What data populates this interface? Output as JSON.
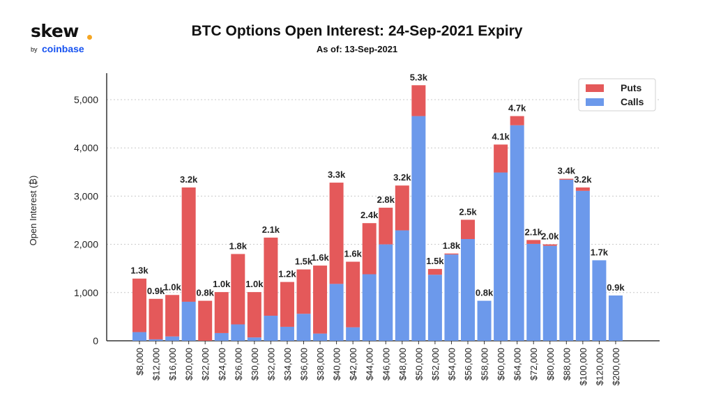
{
  "logo": {
    "word": "skew",
    "by": "by",
    "brand": "coinbase",
    "accent_color": "#f5a623",
    "brand_color": "#1652f0"
  },
  "chart_data": {
    "type": "bar",
    "stacked": true,
    "title": "BTC Options Open Interest: 24-Sep-2021 Expiry",
    "subtitle": "As of: 13-Sep-2021",
    "ylabel": "Open Interest (₿)",
    "ylim": [
      0,
      5550
    ],
    "yticks": [
      0,
      1000,
      2000,
      3000,
      4000,
      5000
    ],
    "ytick_labels": [
      "0",
      "1,000",
      "2,000",
      "3,000",
      "4,000",
      "5,000"
    ],
    "grid": true,
    "legend_position": "top-right",
    "categories": [
      "$8,000",
      "$12,000",
      "$16,000",
      "$20,000",
      "$22,000",
      "$24,000",
      "$26,000",
      "$30,000",
      "$32,000",
      "$34,000",
      "$36,000",
      "$38,000",
      "$40,000",
      "$42,000",
      "$44,000",
      "$46,000",
      "$48,000",
      "$50,000",
      "$52,000",
      "$54,000",
      "$56,000",
      "$58,000",
      "$60,000",
      "$64,000",
      "$72,000",
      "$80,000",
      "$88,000",
      "$100,000",
      "$120,000",
      "$200,000"
    ],
    "series": [
      {
        "name": "Calls",
        "color": "#6c99eb",
        "values": [
          180,
          30,
          90,
          810,
          0,
          160,
          340,
          70,
          520,
          290,
          560,
          150,
          1180,
          280,
          1380,
          2000,
          2290,
          4660,
          1370,
          1790,
          2110,
          830,
          3490,
          4470,
          2010,
          1970,
          3340,
          3110,
          1670,
          940
        ]
      },
      {
        "name": "Puts",
        "color": "#e4595a",
        "values": [
          1110,
          840,
          860,
          2370,
          830,
          850,
          1460,
          940,
          1620,
          930,
          920,
          1410,
          2100,
          1360,
          1060,
          760,
          930,
          640,
          120,
          20,
          400,
          0,
          580,
          190,
          80,
          30,
          20,
          70,
          0,
          0
        ]
      }
    ],
    "total_labels": [
      "1.3k",
      "0.9k",
      "1.0k",
      "3.2k",
      "0.8k",
      "1.0k",
      "1.8k",
      "1.0k",
      "2.1k",
      "1.2k",
      "1.5k",
      "1.6k",
      "3.3k",
      "1.6k",
      "2.4k",
      "2.8k",
      "3.2k",
      "5.3k",
      "1.5k",
      "1.8k",
      "2.5k",
      "0.8k",
      "4.1k",
      "4.7k",
      "2.1k",
      "2.0k",
      "3.4k",
      "3.2k",
      "1.7k",
      "0.9k"
    ]
  }
}
